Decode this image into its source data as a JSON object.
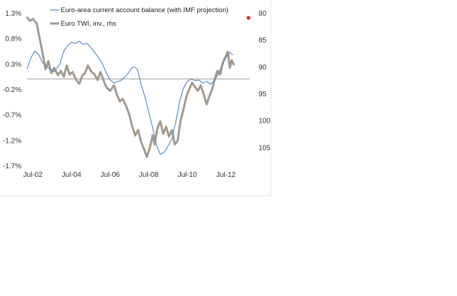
{
  "chart_data": {
    "type": "line",
    "x_ticks": [
      "Jul-02",
      "Jul-04",
      "Jul-06",
      "Jul-08",
      "Jul-10",
      "Jul-12"
    ],
    "x_tick_years": [
      2002.5,
      2004.5,
      2006.5,
      2008.5,
      2010.5,
      2012.5
    ],
    "xlim": [
      2002.2,
      2013.3
    ],
    "y_left": {
      "ticks": [
        "1.3%",
        "0.8%",
        "0.3%",
        "-0.2%",
        "-0.7%",
        "-1.2%",
        "-1.7%"
      ],
      "tick_values": [
        1.3,
        0.8,
        0.3,
        -0.2,
        -0.7,
        -1.2,
        -1.7
      ],
      "lim": [
        -1.7,
        1.3
      ]
    },
    "y_right": {
      "ticks": [
        "80",
        "85",
        "90",
        "95",
        "100",
        "105"
      ],
      "tick_values": [
        80,
        85,
        90,
        95,
        100,
        105
      ],
      "lim": [
        80,
        108.4
      ],
      "inverted": true
    },
    "zero_line": 0.0,
    "legend_position": "top-center",
    "marker_color": "#e0201b",
    "series": [
      {
        "name": "Euro-area current account balance (with IMF projection)",
        "axis": "left",
        "color": "#5b8fc2",
        "points": [
          [
            2002.2,
            0.2
          ],
          [
            2002.4,
            0.42
          ],
          [
            2002.6,
            0.55
          ],
          [
            2002.8,
            0.48
          ],
          [
            2003.0,
            0.32
          ],
          [
            2003.3,
            0.22
          ],
          [
            2003.6,
            0.14
          ],
          [
            2003.9,
            0.3
          ],
          [
            2004.1,
            0.55
          ],
          [
            2004.3,
            0.66
          ],
          [
            2004.5,
            0.72
          ],
          [
            2004.7,
            0.7
          ],
          [
            2004.9,
            0.74
          ],
          [
            2005.1,
            0.68
          ],
          [
            2005.3,
            0.7
          ],
          [
            2005.5,
            0.62
          ],
          [
            2005.7,
            0.52
          ],
          [
            2005.9,
            0.42
          ],
          [
            2006.1,
            0.3
          ],
          [
            2006.3,
            0.12
          ],
          [
            2006.5,
            -0.02
          ],
          [
            2006.7,
            -0.08
          ],
          [
            2006.9,
            -0.05
          ],
          [
            2007.1,
            -0.02
          ],
          [
            2007.3,
            0.05
          ],
          [
            2007.5,
            0.15
          ],
          [
            2007.7,
            0.24
          ],
          [
            2007.9,
            0.2
          ],
          [
            2008.1,
            -0.1
          ],
          [
            2008.3,
            -0.35
          ],
          [
            2008.5,
            -0.65
          ],
          [
            2008.7,
            -0.95
          ],
          [
            2008.9,
            -1.3
          ],
          [
            2009.1,
            -1.48
          ],
          [
            2009.3,
            -1.44
          ],
          [
            2009.5,
            -1.32
          ],
          [
            2009.7,
            -1.18
          ],
          [
            2009.9,
            -0.85
          ],
          [
            2010.1,
            -0.45
          ],
          [
            2010.3,
            -0.18
          ],
          [
            2010.5,
            -0.05
          ],
          [
            2010.7,
            0.0
          ],
          [
            2010.9,
            -0.03
          ],
          [
            2011.1,
            -0.02
          ],
          [
            2011.3,
            -0.08
          ],
          [
            2011.5,
            -0.05
          ],
          [
            2011.7,
            -0.1
          ],
          [
            2011.9,
            -0.04
          ],
          [
            2012.1,
            0.1
          ],
          [
            2012.3,
            0.28
          ],
          [
            2012.5,
            0.42
          ],
          [
            2012.7,
            0.52
          ],
          [
            2012.85,
            0.48
          ]
        ]
      },
      {
        "name": "Euro TWI, inv., rhs",
        "axis": "right",
        "color": "#a39a8f",
        "points": [
          [
            2002.2,
            80.9
          ],
          [
            2002.35,
            81.5
          ],
          [
            2002.5,
            81.1
          ],
          [
            2002.7,
            82.0
          ],
          [
            2002.85,
            84.8
          ],
          [
            2003.0,
            87.5
          ],
          [
            2003.15,
            90.5
          ],
          [
            2003.3,
            89.0
          ],
          [
            2003.45,
            91.2
          ],
          [
            2003.6,
            90.2
          ],
          [
            2003.8,
            91.6
          ],
          [
            2003.95,
            90.8
          ],
          [
            2004.1,
            91.9
          ],
          [
            2004.25,
            89.8
          ],
          [
            2004.4,
            91.5
          ],
          [
            2004.55,
            91.0
          ],
          [
            2004.75,
            92.5
          ],
          [
            2004.9,
            93.2
          ],
          [
            2005.05,
            91.8
          ],
          [
            2005.2,
            91.2
          ],
          [
            2005.35,
            89.8
          ],
          [
            2005.5,
            90.8
          ],
          [
            2005.7,
            91.5
          ],
          [
            2005.85,
            92.5
          ],
          [
            2006.0,
            91.0
          ],
          [
            2006.15,
            92.5
          ],
          [
            2006.3,
            93.8
          ],
          [
            2006.5,
            94.5
          ],
          [
            2006.7,
            93.5
          ],
          [
            2006.85,
            95.2
          ],
          [
            2007.0,
            96.5
          ],
          [
            2007.15,
            96.0
          ],
          [
            2007.35,
            97.5
          ],
          [
            2007.5,
            99.0
          ],
          [
            2007.65,
            101.2
          ],
          [
            2007.8,
            102.8
          ],
          [
            2007.95,
            101.8
          ],
          [
            2008.1,
            104.0
          ],
          [
            2008.25,
            105.3
          ],
          [
            2008.4,
            106.8
          ],
          [
            2008.55,
            105.2
          ],
          [
            2008.7,
            102.8
          ],
          [
            2008.8,
            104.5
          ],
          [
            2008.95,
            101.5
          ],
          [
            2009.1,
            100.2
          ],
          [
            2009.25,
            102.5
          ],
          [
            2009.4,
            101.2
          ],
          [
            2009.55,
            103.0
          ],
          [
            2009.7,
            101.8
          ],
          [
            2009.85,
            104.5
          ],
          [
            2010.0,
            103.8
          ],
          [
            2010.15,
            100.0
          ],
          [
            2010.3,
            98.0
          ],
          [
            2010.45,
            95.6
          ],
          [
            2010.6,
            94.2
          ],
          [
            2010.75,
            93.0
          ],
          [
            2010.9,
            93.8
          ],
          [
            2011.05,
            94.5
          ],
          [
            2011.2,
            93.5
          ],
          [
            2011.35,
            95.2
          ],
          [
            2011.5,
            97.0
          ],
          [
            2011.65,
            95.5
          ],
          [
            2011.8,
            94.0
          ],
          [
            2011.95,
            92.0
          ],
          [
            2012.05,
            90.8
          ],
          [
            2012.2,
            91.5
          ],
          [
            2012.35,
            89.2
          ],
          [
            2012.5,
            88.0
          ],
          [
            2012.6,
            87.2
          ],
          [
            2012.7,
            90.2
          ],
          [
            2012.8,
            88.8
          ],
          [
            2012.9,
            89.6
          ]
        ]
      }
    ]
  }
}
